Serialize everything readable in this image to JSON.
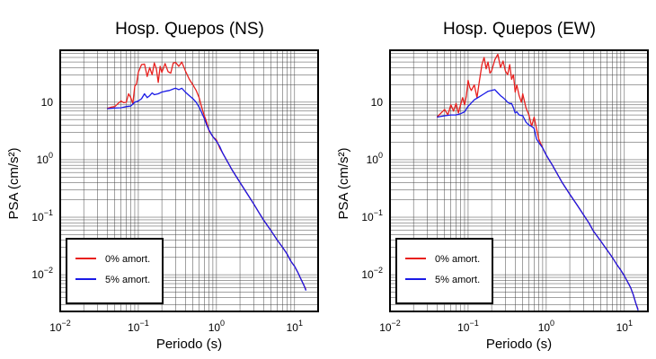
{
  "chart_data": [
    {
      "type": "line",
      "title": "Hosp. Quepos (NS)",
      "xlabel": "Periodo (s)",
      "ylabel": "PSA (cm/s²)",
      "x_scale": "log",
      "y_scale": "log",
      "xlim": [
        0.01,
        20
      ],
      "ylim": [
        0.0023,
        80
      ],
      "grid": true,
      "legend_position": "bottom-left",
      "x_ticks": [
        {
          "base": "10",
          "exp": "−2"
        },
        {
          "base": "10",
          "exp": "−1"
        },
        {
          "base": "10",
          "exp": "0"
        },
        {
          "base": "10",
          "exp": "1"
        }
      ],
      "y_ticks": [
        {
          "base": "10",
          "exp": "−2"
        },
        {
          "base": "10",
          "exp": "−1"
        },
        {
          "base": "10",
          "exp": "0"
        },
        {
          "base": "10",
          "exp": "1",
          "plain": "10"
        }
      ],
      "series": [
        {
          "name": "0% amort.",
          "color": "#e8201e",
          "points": [
            [
              0.04,
              7.8
            ],
            [
              0.045,
              8.2
            ],
            [
              0.05,
              8.4
            ],
            [
              0.055,
              9.5
            ],
            [
              0.06,
              10.5
            ],
            [
              0.065,
              9.8
            ],
            [
              0.07,
              10
            ],
            [
              0.075,
              14
            ],
            [
              0.08,
              12
            ],
            [
              0.085,
              9.5
            ],
            [
              0.09,
              19
            ],
            [
              0.095,
              21
            ],
            [
              0.1,
              33
            ],
            [
              0.11,
              45
            ],
            [
              0.12,
              46
            ],
            [
              0.13,
              28
            ],
            [
              0.14,
              40
            ],
            [
              0.15,
              30
            ],
            [
              0.16,
              48
            ],
            [
              0.17,
              38
            ],
            [
              0.18,
              22
            ],
            [
              0.19,
              42
            ],
            [
              0.2,
              33
            ],
            [
              0.22,
              47
            ],
            [
              0.24,
              34
            ],
            [
              0.26,
              32
            ],
            [
              0.28,
              48
            ],
            [
              0.3,
              49
            ],
            [
              0.33,
              42
            ],
            [
              0.36,
              50
            ],
            [
              0.4,
              35
            ],
            [
              0.45,
              25
            ],
            [
              0.5,
              20
            ],
            [
              0.55,
              16
            ],
            [
              0.6,
              12
            ],
            [
              0.65,
              8
            ],
            [
              0.7,
              5.8
            ],
            [
              0.75,
              4.5
            ],
            [
              0.8,
              3.2
            ],
            [
              0.9,
              2.5
            ],
            [
              1.0,
              2.2
            ],
            [
              1.1,
              1.6
            ],
            [
              1.2,
              1.3
            ],
            [
              1.4,
              0.9
            ],
            [
              1.6,
              0.65
            ],
            [
              2.0,
              0.4
            ],
            [
              2.5,
              0.25
            ],
            [
              3.0,
              0.17
            ],
            [
              3.5,
              0.12
            ],
            [
              4.0,
              0.09
            ],
            [
              5.0,
              0.058
            ],
            [
              6.0,
              0.04
            ],
            [
              7.0,
              0.03
            ],
            [
              8.0,
              0.023
            ],
            [
              9.0,
              0.017
            ],
            [
              10.0,
              0.014
            ],
            [
              11.0,
              0.011
            ],
            [
              12.0,
              0.0085
            ],
            [
              13.0,
              0.0068
            ],
            [
              14.0,
              0.0055
            ]
          ]
        },
        {
          "name": "5% amort.",
          "color": "#1a1ae6",
          "points": [
            [
              0.04,
              7.7
            ],
            [
              0.05,
              7.9
            ],
            [
              0.06,
              8
            ],
            [
              0.07,
              8.4
            ],
            [
              0.08,
              8.6
            ],
            [
              0.09,
              10
            ],
            [
              0.1,
              10.5
            ],
            [
              0.11,
              11.5
            ],
            [
              0.12,
              14
            ],
            [
              0.13,
              12
            ],
            [
              0.14,
              13
            ],
            [
              0.15,
              14.5
            ],
            [
              0.16,
              13.5
            ],
            [
              0.18,
              14
            ],
            [
              0.2,
              15
            ],
            [
              0.22,
              15.5
            ],
            [
              0.25,
              16
            ],
            [
              0.28,
              17
            ],
            [
              0.3,
              17.5
            ],
            [
              0.33,
              16.5
            ],
            [
              0.36,
              17.5
            ],
            [
              0.4,
              15
            ],
            [
              0.45,
              13
            ],
            [
              0.5,
              11.5
            ],
            [
              0.55,
              10
            ],
            [
              0.6,
              8.2
            ],
            [
              0.65,
              6.5
            ],
            [
              0.7,
              5.2
            ],
            [
              0.75,
              4
            ],
            [
              0.8,
              3.3
            ],
            [
              0.9,
              2.5
            ],
            [
              1.0,
              2.1
            ],
            [
              1.1,
              1.7
            ],
            [
              1.2,
              1.3
            ],
            [
              1.4,
              0.9
            ],
            [
              1.6,
              0.65
            ],
            [
              2.0,
              0.4
            ],
            [
              2.5,
              0.25
            ],
            [
              3.0,
              0.17
            ],
            [
              3.5,
              0.12
            ],
            [
              4.0,
              0.09
            ],
            [
              5.0,
              0.058
            ],
            [
              6.0,
              0.04
            ],
            [
              7.0,
              0.03
            ],
            [
              8.0,
              0.023
            ],
            [
              9.0,
              0.017
            ],
            [
              10.0,
              0.014
            ],
            [
              11.0,
              0.011
            ],
            [
              12.0,
              0.0085
            ],
            [
              13.0,
              0.0068
            ],
            [
              14.0,
              0.0053
            ]
          ]
        }
      ]
    },
    {
      "type": "line",
      "title": "Hosp. Quepos (EW)",
      "xlabel": "Periodo (s)",
      "ylabel": "PSA (cm/s²)",
      "x_scale": "log",
      "y_scale": "log",
      "xlim": [
        0.01,
        20
      ],
      "ylim": [
        0.0023,
        80
      ],
      "grid": true,
      "legend_position": "bottom-left",
      "x_ticks": [
        {
          "base": "10",
          "exp": "−2"
        },
        {
          "base": "10",
          "exp": "−1"
        },
        {
          "base": "10",
          "exp": "0"
        },
        {
          "base": "10",
          "exp": "1"
        }
      ],
      "y_ticks": [
        {
          "base": "10",
          "exp": "−2"
        },
        {
          "base": "10",
          "exp": "−1"
        },
        {
          "base": "10",
          "exp": "0"
        },
        {
          "base": "10",
          "exp": "1",
          "plain": "10"
        }
      ],
      "series": [
        {
          "name": "0% amort.",
          "color": "#e8201e",
          "points": [
            [
              0.04,
              5.5
            ],
            [
              0.045,
              6.5
            ],
            [
              0.05,
              7.5
            ],
            [
              0.055,
              6
            ],
            [
              0.06,
              9
            ],
            [
              0.065,
              7
            ],
            [
              0.07,
              9.5
            ],
            [
              0.075,
              6.5
            ],
            [
              0.08,
              9
            ],
            [
              0.085,
              12
            ],
            [
              0.09,
              9
            ],
            [
              0.095,
              13
            ],
            [
              0.1,
              24
            ],
            [
              0.105,
              18
            ],
            [
              0.11,
              16
            ],
            [
              0.12,
              20
            ],
            [
              0.13,
              12
            ],
            [
              0.14,
              24
            ],
            [
              0.15,
              45
            ],
            [
              0.16,
              60
            ],
            [
              0.17,
              38
            ],
            [
              0.18,
              50
            ],
            [
              0.19,
              32
            ],
            [
              0.2,
              35
            ],
            [
              0.22,
              55
            ],
            [
              0.24,
              68
            ],
            [
              0.26,
              40
            ],
            [
              0.28,
              52
            ],
            [
              0.3,
              35
            ],
            [
              0.32,
              30
            ],
            [
              0.34,
              45
            ],
            [
              0.36,
              25
            ],
            [
              0.38,
              30
            ],
            [
              0.4,
              15
            ],
            [
              0.42,
              20
            ],
            [
              0.45,
              13
            ],
            [
              0.48,
              10
            ],
            [
              0.5,
              14
            ],
            [
              0.55,
              8
            ],
            [
              0.6,
              6
            ],
            [
              0.65,
              3.8
            ],
            [
              0.7,
              5.5
            ],
            [
              0.75,
              3.5
            ],
            [
              0.8,
              2.3
            ],
            [
              0.9,
              1.6
            ],
            [
              1.0,
              1.2
            ],
            [
              1.2,
              0.8
            ],
            [
              1.4,
              0.55
            ],
            [
              1.6,
              0.4
            ],
            [
              2.0,
              0.25
            ],
            [
              2.5,
              0.16
            ],
            [
              3.0,
              0.11
            ],
            [
              3.5,
              0.08
            ],
            [
              4.0,
              0.058
            ],
            [
              5.0,
              0.038
            ],
            [
              6.0,
              0.027
            ],
            [
              7.0,
              0.02
            ],
            [
              8.0,
              0.015
            ],
            [
              9.0,
              0.012
            ],
            [
              10.0,
              0.0095
            ],
            [
              11.0,
              0.0075
            ],
            [
              12.0,
              0.006
            ],
            [
              13.0,
              0.0045
            ],
            [
              14.0,
              0.0032
            ],
            [
              15.0,
              0.0025
            ]
          ]
        },
        {
          "name": "5% amort.",
          "color": "#1a1ae6",
          "points": [
            [
              0.04,
              5.5
            ],
            [
              0.05,
              5.8
            ],
            [
              0.06,
              6
            ],
            [
              0.07,
              6
            ],
            [
              0.08,
              6.3
            ],
            [
              0.09,
              6.8
            ],
            [
              0.1,
              8.5
            ],
            [
              0.12,
              11
            ],
            [
              0.14,
              12.5
            ],
            [
              0.16,
              14
            ],
            [
              0.18,
              15.5
            ],
            [
              0.2,
              16
            ],
            [
              0.22,
              16.5
            ],
            [
              0.24,
              14.5
            ],
            [
              0.26,
              13
            ],
            [
              0.28,
              12
            ],
            [
              0.3,
              11
            ],
            [
              0.32,
              10
            ],
            [
              0.34,
              9.5
            ],
            [
              0.36,
              9.5
            ],
            [
              0.38,
              8
            ],
            [
              0.4,
              6.5
            ],
            [
              0.42,
              6.8
            ],
            [
              0.45,
              6
            ],
            [
              0.5,
              5.8
            ],
            [
              0.55,
              4.5
            ],
            [
              0.6,
              4
            ],
            [
              0.65,
              3.8
            ],
            [
              0.7,
              3.5
            ],
            [
              0.75,
              2.3
            ],
            [
              0.8,
              2
            ],
            [
              0.9,
              1.6
            ],
            [
              1.0,
              1.2
            ],
            [
              1.2,
              0.8
            ],
            [
              1.4,
              0.55
            ],
            [
              1.6,
              0.4
            ],
            [
              2.0,
              0.25
            ],
            [
              2.5,
              0.16
            ],
            [
              3.0,
              0.11
            ],
            [
              3.5,
              0.08
            ],
            [
              4.0,
              0.058
            ],
            [
              5.0,
              0.038
            ],
            [
              6.0,
              0.027
            ],
            [
              7.0,
              0.02
            ],
            [
              8.0,
              0.015
            ],
            [
              9.0,
              0.012
            ],
            [
              10.0,
              0.0095
            ],
            [
              11.0,
              0.0075
            ],
            [
              12.0,
              0.006
            ],
            [
              13.0,
              0.0045
            ],
            [
              14.0,
              0.0032
            ],
            [
              15.0,
              0.0024
            ]
          ]
        }
      ]
    }
  ]
}
